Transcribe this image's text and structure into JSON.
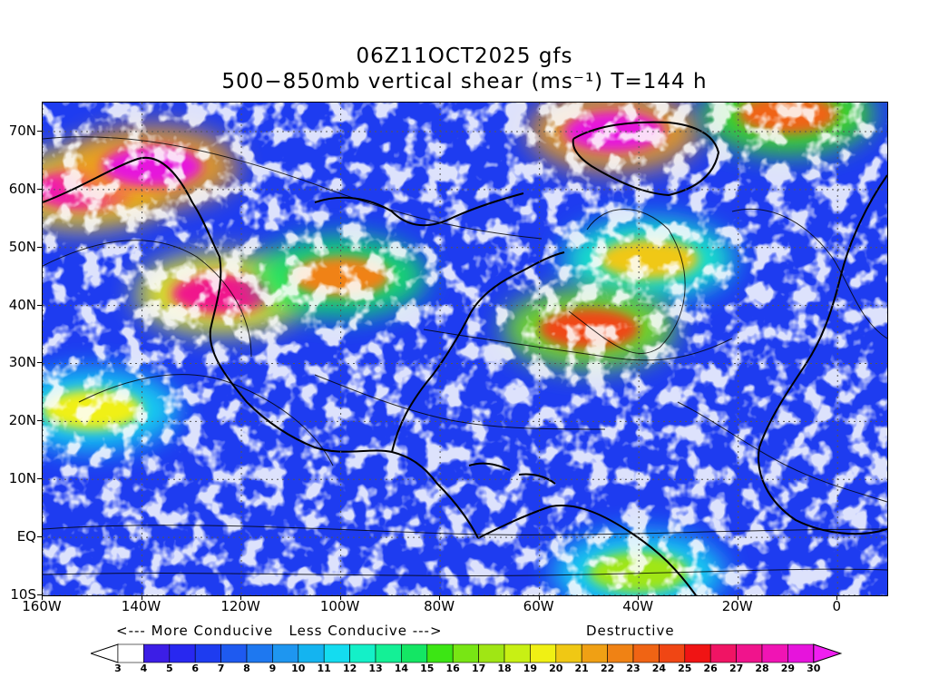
{
  "title": {
    "line1": "06Z11OCT2025 gfs",
    "line2": "500−850mb vertical shear (ms⁻¹) T=144 h"
  },
  "axes": {
    "lat_labels": [
      "70N",
      "60N",
      "50N",
      "40N",
      "30N",
      "20N",
      "10N",
      "EQ",
      "10S"
    ],
    "lat_values": [
      70,
      60,
      50,
      40,
      30,
      20,
      10,
      0,
      -10
    ],
    "lon_labels": [
      "160W",
      "140W",
      "120W",
      "100W",
      "80W",
      "60W",
      "40W",
      "20W",
      "0"
    ],
    "lon_values": [
      -160,
      -140,
      -120,
      -100,
      -80,
      -60,
      -40,
      -20,
      0
    ],
    "lat_range": [
      -10,
      75
    ],
    "lon_range": [
      -160,
      10
    ]
  },
  "legend": {
    "conducive_text": "<--- More Conducive   Less Conducive --->",
    "destructive_text": "Destructive",
    "levels": [
      "3",
      "4",
      "5",
      "6",
      "7",
      "8",
      "9",
      "10",
      "11",
      "12",
      "13",
      "14",
      "15",
      "16",
      "17",
      "18",
      "19",
      "20",
      "21",
      "22",
      "23",
      "24",
      "25",
      "26",
      "27",
      "28",
      "29",
      "30"
    ],
    "colors": [
      "#ffffff",
      "#3c1ee6",
      "#2828f0",
      "#1e3cf0",
      "#1e5af0",
      "#1e78f0",
      "#1e96f0",
      "#14b4f0",
      "#14dcf0",
      "#14f0c8",
      "#14f096",
      "#14e664",
      "#3ce614",
      "#78e614",
      "#a0e614",
      "#c8f014",
      "#f0f014",
      "#f0c814",
      "#f0a014",
      "#f08214",
      "#f06414",
      "#f04614",
      "#f01414",
      "#f01464",
      "#f0148c",
      "#f014b4",
      "#e614dc"
    ],
    "over_color": "#f01ef0"
  },
  "map": {
    "regions": [
      {
        "name": "nw-pacific-jet",
        "level": 28,
        "lon": -152,
        "lat": 60
      },
      {
        "name": "alaska-jet",
        "level": 29,
        "lon": -138,
        "lat": 64
      },
      {
        "name": "west-coast-jet",
        "level": 27,
        "lon": -124,
        "lat": 42
      },
      {
        "name": "us-midwest-shear",
        "level": 22,
        "lon": -100,
        "lat": 45
      },
      {
        "name": "greenland-jet",
        "level": 29,
        "lon": -45,
        "lat": 70
      },
      {
        "name": "atlantic-low-ring",
        "level": 20,
        "lon": -38,
        "lat": 48
      },
      {
        "name": "atlantic-jet-streak",
        "level": 24,
        "lon": -50,
        "lat": 36
      },
      {
        "name": "nw-atlantic-jet",
        "level": 23,
        "lon": -10,
        "lat": 73
      },
      {
        "name": "central-pacific-band",
        "level": 19,
        "lon": -150,
        "lat": 22
      },
      {
        "name": "equatorial-atlantic",
        "level": 17,
        "lon": -40,
        "lat": -6
      }
    ]
  }
}
